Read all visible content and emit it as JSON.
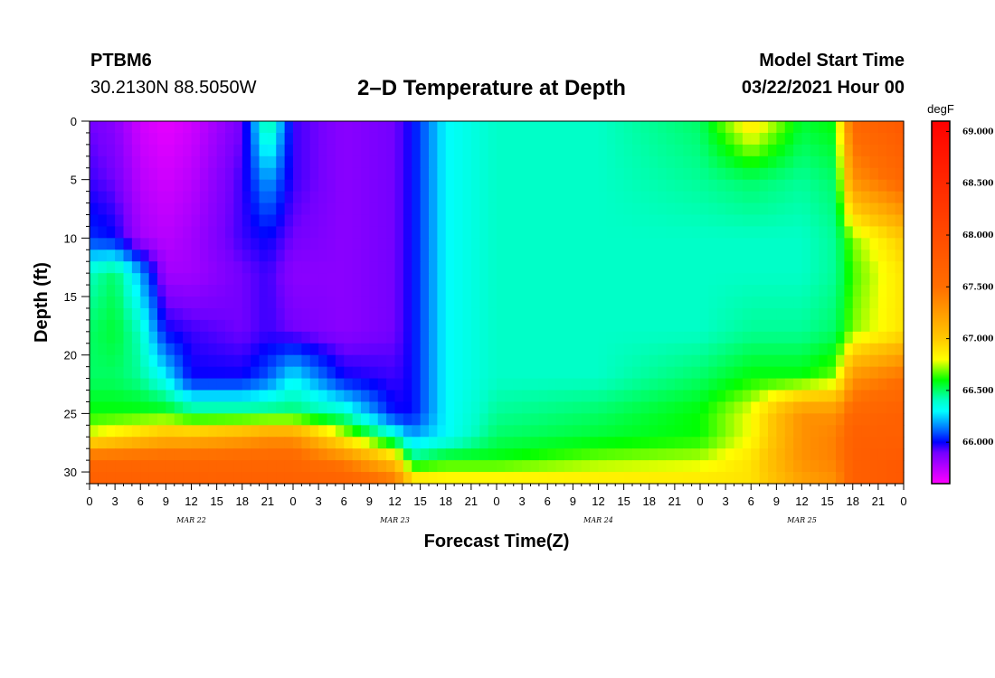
{
  "header": {
    "station": "PTBM6",
    "coords": "30.2130N 88.5050W",
    "title": "2–D Temperature at Depth",
    "model_start_label": "Model Start Time",
    "model_start_value": "03/22/2021 Hour 00"
  },
  "chart_data": {
    "type": "heatmap",
    "title": "2–D Temperature at Depth",
    "xlabel": "Forecast Time(Z)",
    "ylabel": "Depth (ft)",
    "x_tick_labels": [
      "0",
      "3",
      "6",
      "9",
      "12",
      "15",
      "18",
      "21",
      "0",
      "3",
      "6",
      "9",
      "12",
      "15",
      "18",
      "21",
      "0",
      "3",
      "6",
      "9",
      "12",
      "15",
      "18",
      "21",
      "0",
      "3",
      "6",
      "9",
      "12",
      "15",
      "18",
      "21",
      "0"
    ],
    "day_labels": [
      "MAR 22",
      "MAR 23",
      "MAR 24",
      "MAR 25"
    ],
    "day_label_hours": [
      12,
      36,
      60,
      84
    ],
    "x_range_hours": [
      0,
      96
    ],
    "y_ticks": [
      0,
      5,
      10,
      15,
      20,
      25,
      30
    ],
    "ylim": [
      31,
      0
    ],
    "colorbar": {
      "unit": "degF",
      "range": [
        65.6,
        69.1
      ],
      "tick_values": [
        66.0,
        66.5,
        67.0,
        67.5,
        68.0,
        68.5,
        69.0
      ],
      "tick_labels": [
        "66.000",
        "66.500",
        "67.000",
        "67.500",
        "68.000",
        "68.500",
        "69.000"
      ]
    },
    "field_keypoints_depth_ft": [
      0,
      5,
      10,
      13,
      18,
      22,
      25,
      27,
      29,
      31
    ],
    "field_keypoints_hour": [
      0,
      3,
      6,
      9,
      12,
      18,
      21,
      24,
      30,
      36,
      38,
      42,
      48,
      60,
      72,
      78,
      84,
      88,
      90,
      96
    ],
    "field_degF": [
      [
        65.9,
        65.85,
        65.7,
        65.65,
        65.7,
        65.9,
        66.5,
        65.95,
        65.85,
        65.9,
        66.0,
        66.3,
        66.4,
        66.4,
        66.5,
        66.9,
        66.55,
        66.6,
        67.6,
        67.8
      ],
      [
        65.95,
        65.9,
        65.75,
        65.7,
        65.75,
        65.95,
        66.2,
        65.95,
        65.85,
        65.9,
        66.0,
        66.3,
        66.4,
        66.4,
        66.45,
        66.5,
        66.45,
        66.5,
        67.3,
        67.6
      ],
      [
        66.05,
        66.0,
        65.8,
        65.75,
        65.8,
        65.95,
        66.0,
        65.9,
        65.85,
        65.9,
        66.0,
        66.3,
        66.4,
        66.4,
        66.4,
        66.4,
        66.4,
        66.45,
        66.7,
        67.0
      ],
      [
        66.4,
        66.5,
        66.2,
        65.8,
        65.8,
        65.9,
        65.95,
        65.85,
        65.85,
        65.9,
        66.0,
        66.3,
        66.4,
        66.4,
        66.4,
        66.4,
        66.4,
        66.45,
        66.65,
        66.9
      ],
      [
        66.5,
        66.55,
        66.4,
        66.0,
        65.95,
        65.9,
        65.95,
        65.9,
        65.85,
        65.9,
        66.0,
        66.3,
        66.4,
        66.4,
        66.4,
        66.45,
        66.45,
        66.5,
        66.7,
        66.9
      ],
      [
        66.5,
        66.5,
        66.45,
        66.3,
        66.0,
        66.0,
        66.1,
        66.3,
        66.0,
        65.95,
        66.0,
        66.3,
        66.4,
        66.4,
        66.5,
        66.6,
        66.6,
        66.7,
        67.3,
        67.5
      ],
      [
        66.6,
        66.6,
        66.6,
        66.6,
        66.5,
        66.5,
        66.5,
        66.5,
        66.4,
        66.0,
        66.0,
        66.3,
        66.45,
        66.5,
        66.6,
        66.8,
        67.3,
        67.3,
        67.6,
        67.7
      ],
      [
        66.8,
        66.9,
        67.0,
        67.1,
        67.1,
        67.2,
        67.3,
        67.3,
        66.8,
        66.4,
        66.2,
        66.3,
        66.5,
        66.55,
        66.6,
        66.8,
        67.3,
        67.4,
        67.7,
        67.7
      ],
      [
        67.6,
        67.6,
        67.6,
        67.6,
        67.6,
        67.6,
        67.6,
        67.6,
        67.4,
        67.0,
        66.5,
        66.6,
        66.6,
        66.7,
        66.75,
        66.9,
        67.3,
        67.4,
        67.7,
        67.8
      ],
      [
        67.7,
        67.7,
        67.7,
        67.7,
        67.7,
        67.7,
        67.7,
        67.7,
        67.7,
        67.5,
        67.0,
        66.9,
        66.9,
        66.9,
        66.9,
        66.9,
        67.2,
        67.3,
        67.7,
        67.8
      ]
    ]
  }
}
